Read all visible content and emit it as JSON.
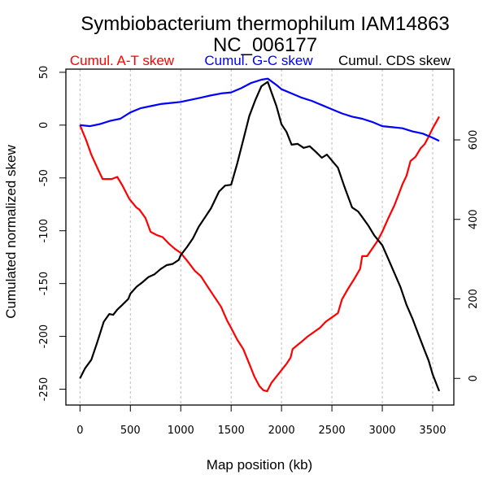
{
  "chart_data": {
    "type": "line",
    "title": "Symbiobacterium thermophilum IAM14863",
    "subtitle": "NC_006177",
    "xlabel": "Map position (kb)",
    "ylabel": "Cumulated normalized skew",
    "y2label": "",
    "xlim": [
      -140,
      3710
    ],
    "ylim": [
      -265,
      53
    ],
    "y2lim": [
      -67,
      778
    ],
    "xticks": [
      0,
      500,
      1000,
      1500,
      2000,
      2500,
      3000,
      3500
    ],
    "xtick_labels": [
      "0",
      "500",
      "1000",
      "1500",
      "2000",
      "2500",
      "3000",
      "3500"
    ],
    "yticks": [
      50,
      0,
      -50,
      -100,
      -150,
      -200,
      -250
    ],
    "ytick_labels": [
      "50",
      "0",
      "-50",
      "-100",
      "-150",
      "-200",
      "-250"
    ],
    "y2ticks": [
      0,
      200,
      400,
      600
    ],
    "y2tick_labels": [
      "0",
      "200",
      "400",
      "600"
    ],
    "grid": "vertical dotted at x ticks",
    "legend_placement": "top, above plot",
    "series": [
      {
        "name": "Cumul. A-T skew",
        "color": "#ff0000",
        "axis": "left",
        "x": [
          0,
          60,
          113,
          170,
          225,
          280,
          315,
          370,
          420,
          490,
          560,
          590,
          650,
          700,
          760,
          820,
          880,
          940,
          1000,
          1060,
          1140,
          1200,
          1260,
          1330,
          1400,
          1460,
          1500,
          1560,
          1620,
          1680,
          1730,
          1780,
          1820,
          1857,
          1900,
          1950,
          2000,
          2050,
          2090,
          2110,
          2160,
          2200,
          2260,
          2320,
          2380,
          2440,
          2500,
          2560,
          2600,
          2660,
          2720,
          2780,
          2800,
          2850,
          2900,
          2950,
          3000,
          3060,
          3120,
          3160,
          3200,
          3240,
          3280,
          3330,
          3380,
          3420,
          3460,
          3500,
          3530,
          3565
        ],
        "y": [
          0,
          -14,
          -28,
          -40,
          -51,
          -51,
          -51,
          -49,
          -57,
          -70,
          -78,
          -80,
          -88,
          -101,
          -104,
          -106,
          -112,
          -117,
          -121,
          -128,
          -138,
          -143,
          -152,
          -162,
          -172,
          -185,
          -192,
          -203,
          -212,
          -226,
          -238,
          -247,
          -251,
          -252,
          -244,
          -238,
          -232,
          -226,
          -220,
          -212,
          -208,
          -205,
          -200,
          -196,
          -192,
          -186,
          -182,
          -178,
          -165,
          -155,
          -146,
          -136,
          -124,
          -124,
          -117,
          -110,
          -101,
          -88,
          -76,
          -66,
          -56,
          -48,
          -34,
          -30,
          -22,
          -18,
          -11,
          -3,
          2,
          8
        ]
      },
      {
        "name": "Cumul. G-C skew",
        "color": "#0000ff",
        "axis": "left",
        "x": [
          0,
          100,
          200,
          300,
          400,
          500,
          600,
          700,
          800,
          900,
          1000,
          1100,
          1200,
          1290,
          1400,
          1500,
          1600,
          1700,
          1800,
          1863,
          1950,
          2000,
          2100,
          2200,
          2300,
          2400,
          2500,
          2600,
          2700,
          2800,
          2900,
          3000,
          3100,
          3200,
          3300,
          3400,
          3500,
          3565
        ],
        "y": [
          0,
          -1,
          1,
          4,
          6,
          12,
          16,
          18,
          20,
          21,
          22,
          24,
          26,
          28,
          30,
          31,
          35,
          40,
          43,
          44,
          38,
          34,
          30,
          26,
          23,
          19,
          15,
          11,
          8,
          6,
          3,
          -1,
          -2,
          -3,
          -6,
          -8,
          -12,
          -15
        ]
      },
      {
        "name": "Cumul. CDS skew",
        "color": "#000000",
        "axis": "right",
        "x": [
          0,
          50,
          113,
          170,
          235,
          290,
          330,
          370,
          420,
          480,
          500,
          560,
          620,
          680,
          740,
          800,
          860,
          920,
          980,
          1000,
          1060,
          1120,
          1180,
          1240,
          1300,
          1380,
          1440,
          1500,
          1560,
          1620,
          1680,
          1740,
          1800,
          1863,
          1900,
          1950,
          2000,
          2050,
          2100,
          2160,
          2220,
          2280,
          2340,
          2400,
          2450,
          2500,
          2560,
          2620,
          2700,
          2760,
          2800,
          2860,
          2920,
          3000,
          3060,
          3120,
          3180,
          3240,
          3300,
          3360,
          3420,
          3460,
          3500,
          3565
        ],
        "y": [
          0,
          25,
          47,
          90,
          142,
          162,
          160,
          173,
          185,
          200,
          213,
          230,
          242,
          255,
          262,
          275,
          285,
          288,
          298,
          310,
          330,
          352,
          382,
          405,
          428,
          470,
          485,
          487,
          540,
          600,
          660,
          700,
          735,
          746,
          720,
          685,
          639,
          620,
          588,
          590,
          580,
          584,
          570,
          555,
          563,
          548,
          530,
          485,
          430,
          420,
          406,
          385,
          360,
          335,
          300,
          265,
          230,
          185,
          150,
          110,
          70,
          45,
          10,
          -32
        ]
      }
    ]
  }
}
